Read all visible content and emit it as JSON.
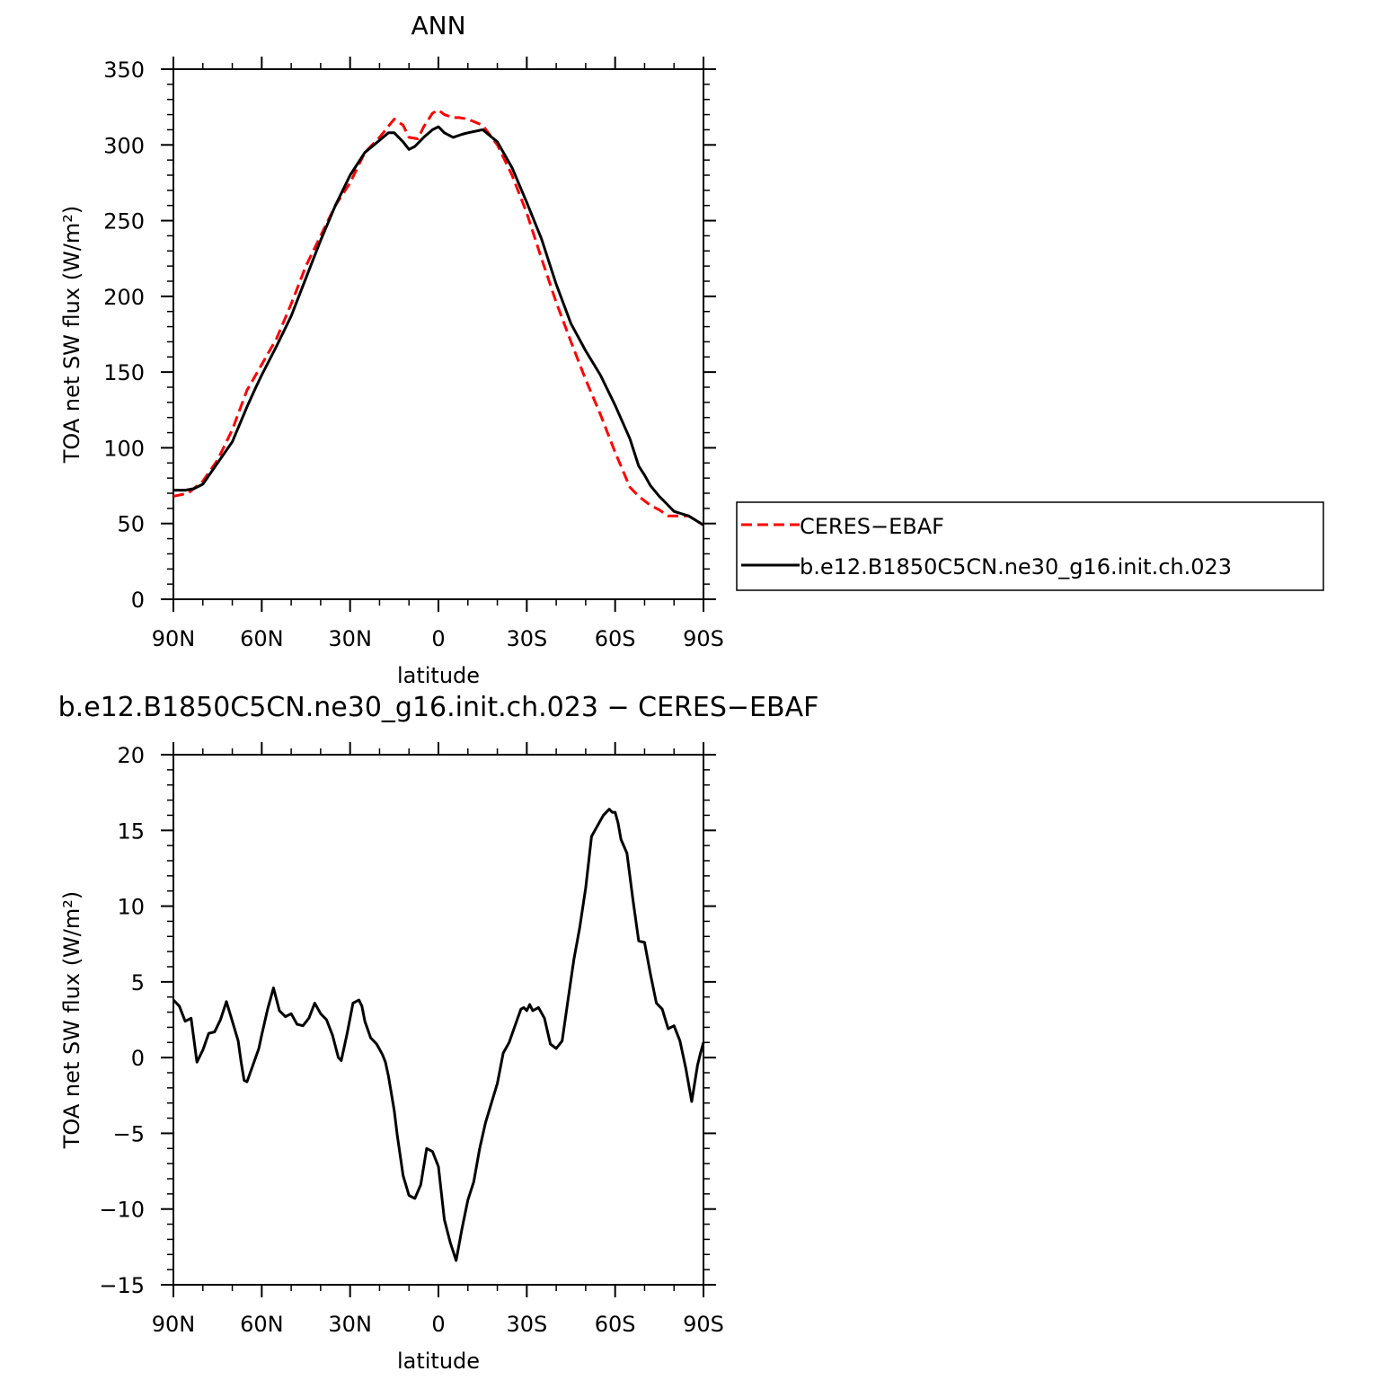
{
  "chart_data": [
    {
      "type": "line",
      "title": "ANN",
      "xlabel": "latitude",
      "ylabel": "TOA net SW flux (W/m²)",
      "ylim": [
        0,
        350
      ],
      "xlim": [
        90,
        -90
      ],
      "x_ticks": [
        90,
        60,
        30,
        0,
        -30,
        -60,
        -90
      ],
      "x_tick_labels": [
        "90N",
        "60N",
        "30N",
        "0",
        "30S",
        "60S",
        "90S"
      ],
      "y_ticks": [
        0,
        50,
        100,
        150,
        200,
        250,
        300,
        350
      ],
      "y_tick_labels": [
        "0",
        "50",
        "100",
        "150",
        "200",
        "250",
        "300",
        "350"
      ],
      "legend_position": "right",
      "series": [
        {
          "name": "CERES−EBAF",
          "color": "#ff0000",
          "dash": "dashed",
          "x": [
            90,
            85,
            80,
            75,
            70,
            65,
            60,
            55,
            50,
            45,
            40,
            35,
            30,
            25,
            20,
            15,
            12,
            10,
            7,
            5,
            2,
            0,
            -2,
            -5,
            -7,
            -10,
            -15,
            -20,
            -25,
            -30,
            -35,
            -40,
            -45,
            -50,
            -55,
            -60,
            -65,
            -68,
            -70,
            -72,
            -75,
            -78,
            -80,
            -85,
            -90
          ],
          "y": [
            68,
            70,
            78,
            92,
            112,
            138,
            155,
            172,
            195,
            220,
            240,
            260,
            275,
            295,
            305,
            317,
            313,
            305,
            304,
            312,
            321,
            323,
            320,
            318,
            318,
            317,
            313,
            300,
            280,
            255,
            225,
            196,
            170,
            145,
            122,
            97,
            74,
            68,
            65,
            62,
            59,
            55,
            55,
            55,
            49
          ]
        },
        {
          "name": "b.e12.B1850C5CN.ne30_g16.init.ch.023",
          "color": "#000000",
          "dash": "solid",
          "x": [
            90,
            88,
            86,
            83,
            80,
            75,
            70,
            65,
            62,
            60,
            55,
            50,
            45,
            40,
            35,
            30,
            25,
            20,
            17,
            15,
            12,
            10,
            8,
            5,
            2,
            0,
            -2,
            -5,
            -8,
            -10,
            -15,
            -20,
            -25,
            -30,
            -35,
            -40,
            -45,
            -50,
            -55,
            -60,
            -65,
            -68,
            -70,
            -72,
            -75,
            -78,
            -80,
            -85,
            -90
          ],
          "y": [
            72,
            72,
            72,
            73,
            76,
            90,
            104,
            127,
            140,
            148,
            167,
            187,
            212,
            237,
            260,
            280,
            295,
            303,
            308,
            308,
            302,
            297,
            299,
            305,
            310,
            312,
            308,
            305,
            307,
            308,
            310,
            302,
            285,
            262,
            238,
            208,
            182,
            164,
            148,
            128,
            106,
            88,
            82,
            75,
            68,
            62,
            58,
            55,
            49
          ]
        }
      ]
    },
    {
      "type": "line",
      "title": "b.e12.B1850C5CN.ne30_g16.init.ch.023 − CERES−EBAF",
      "xlabel": "latitude",
      "ylabel": "TOA net SW flux (W/m²)",
      "ylim": [
        -15,
        20
      ],
      "xlim": [
        90,
        -90
      ],
      "x_ticks": [
        90,
        60,
        30,
        0,
        -30,
        -60,
        -90
      ],
      "x_tick_labels": [
        "90N",
        "60N",
        "30N",
        "0",
        "30S",
        "60S",
        "90S"
      ],
      "y_ticks": [
        -15,
        -10,
        -5,
        0,
        5,
        10,
        15,
        20
      ],
      "y_tick_labels": [
        "−15",
        "−10",
        "−5",
        "0",
        "5",
        "10",
        "15",
        "20"
      ],
      "series": [
        {
          "color": "#000000",
          "x": [
            90,
            88,
            86,
            84,
            82,
            80,
            78,
            76,
            74,
            72,
            70,
            68,
            67,
            66,
            65,
            63,
            61,
            60,
            58,
            56,
            54,
            52,
            50,
            48,
            46,
            44,
            42,
            40,
            38,
            36,
            34,
            33,
            31,
            29,
            27,
            26,
            25,
            23,
            21,
            19,
            18,
            17,
            15,
            14,
            12,
            10,
            8,
            6,
            4,
            2,
            0,
            -2,
            -4,
            -6,
            -8,
            -10,
            -12,
            -14,
            -16,
            -18,
            -20,
            -22,
            -24,
            -26,
            -28,
            -29,
            -30,
            -31,
            -32,
            -34,
            -36,
            -38,
            -40,
            -42,
            -44,
            -46,
            -48,
            -50,
            -52,
            -54,
            -56,
            -58,
            -59,
            -60,
            -61,
            -62,
            -64,
            -66,
            -68,
            -70,
            -72,
            -74,
            -76,
            -78,
            -80,
            -82,
            -84,
            -86,
            -88,
            -89,
            -90
          ],
          "y": [
            3.8,
            3.4,
            2.4,
            2.6,
            -0.3,
            0.5,
            1.6,
            1.7,
            2.5,
            3.7,
            2.4,
            1.1,
            -0.3,
            -1.5,
            -1.6,
            -0.5,
            0.6,
            1.5,
            3.2,
            4.6,
            3.1,
            2.7,
            2.9,
            2.2,
            2.1,
            2.6,
            3.6,
            2.9,
            2.5,
            1.5,
            0.0,
            -0.2,
            1.6,
            3.6,
            3.8,
            3.4,
            2.4,
            1.3,
            0.9,
            0.2,
            -0.3,
            -1.2,
            -3.5,
            -5.1,
            -7.8,
            -9.1,
            -9.3,
            -8.4,
            -6.0,
            -6.2,
            -7.2,
            -10.7,
            -12.2,
            -13.4,
            -11.3,
            -9.4,
            -8.2,
            -6.0,
            -4.3,
            -3.0,
            -1.7,
            0.3,
            1.0,
            2.1,
            3.2,
            3.3,
            3.1,
            3.5,
            3.1,
            3.3,
            2.6,
            0.9,
            0.6,
            1.1,
            3.8,
            6.5,
            8.6,
            11.2,
            14.6,
            15.3,
            16.0,
            16.4,
            16.2,
            16.2,
            15.5,
            14.4,
            13.5,
            10.5,
            7.7,
            7.6,
            5.5,
            3.6,
            3.2,
            1.9,
            2.1,
            1.1,
            -0.7,
            -2.9,
            -0.5,
            0.3,
            1.0
          ]
        }
      ]
    }
  ]
}
